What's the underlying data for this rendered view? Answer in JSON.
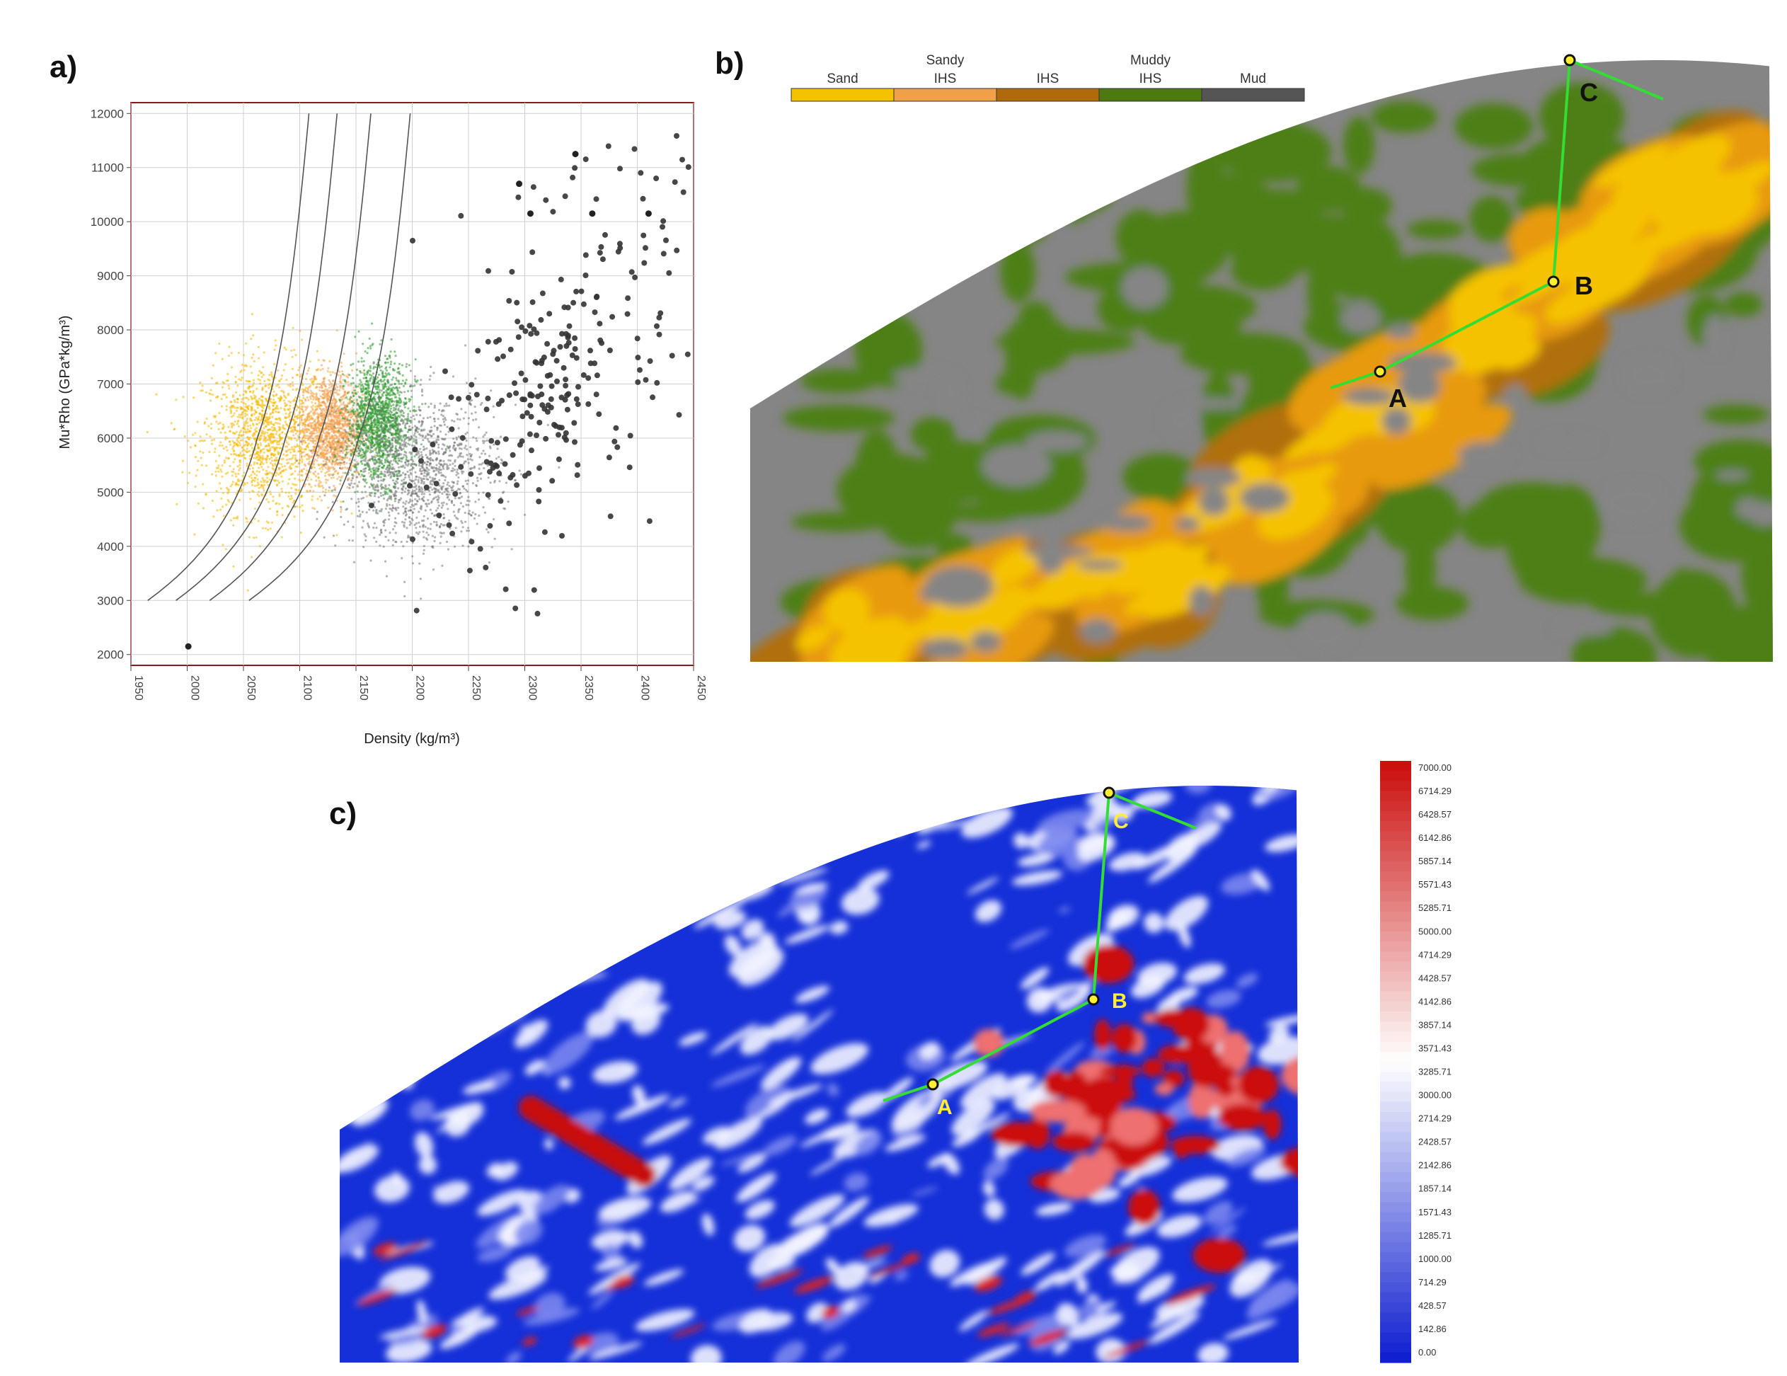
{
  "panels": {
    "a": {
      "label": "a)"
    },
    "b": {
      "label": "b)"
    },
    "c": {
      "label": "c)"
    }
  },
  "chart_data": [
    {
      "panel": "a",
      "type": "scatter",
      "xlabel": "Density (kg/m³)",
      "ylabel": "Mu*Rho (GPa*kg/m³)",
      "xlim": [
        1950,
        2450
      ],
      "ylim": [
        1800,
        12200
      ],
      "x_ticks": [
        1950,
        2000,
        2050,
        2100,
        2150,
        2200,
        2250,
        2300,
        2350,
        2400,
        2450
      ],
      "x_tick_labels": [
        "1950",
        "2000",
        "2050",
        "2100",
        "2150",
        "2200",
        "2250",
        "2300",
        "2350",
        "2400",
        "2450"
      ],
      "y_ticks": [
        2000,
        3000,
        4000,
        5000,
        6000,
        7000,
        8000,
        9000,
        10000,
        11000,
        12000
      ],
      "y_tick_labels": [
        "2000",
        "3000",
        "4000",
        "5000",
        "6000",
        "7000",
        "8000",
        "9000",
        "10000",
        "11000",
        "12000"
      ],
      "grid": true,
      "clusters": [
        {
          "class": "Sand",
          "color": "#f5b800",
          "center": [
            2070,
            6000
          ],
          "spread": [
            28,
            700
          ],
          "density": "cloud"
        },
        {
          "class": "Sandy IHS",
          "color": "#f2a050",
          "center": [
            2128,
            6200
          ],
          "spread": [
            14,
            500
          ],
          "density": "cloud"
        },
        {
          "class": "Muddy IHS",
          "color": "#2e9a2e",
          "center": [
            2170,
            6300
          ],
          "spread": [
            14,
            550
          ],
          "density": "cloud"
        },
        {
          "class": "Mud",
          "color": "#777777",
          "center": [
            2205,
            5400
          ],
          "spread": [
            35,
            700
          ],
          "density": "cloud"
        },
        {
          "class": "Mud",
          "color": "#333333",
          "center": [
            2330,
            7200
          ],
          "spread": [
            55,
            1500
          ],
          "density": "sparse"
        }
      ],
      "notable_points": [
        {
          "x": 2345,
          "y": 11250
        },
        {
          "x": 2295,
          "y": 10700
        },
        {
          "x": 2305,
          "y": 10150
        },
        {
          "x": 2360,
          "y": 10150
        },
        {
          "x": 2410,
          "y": 10150
        },
        {
          "x": 2001,
          "y": 2150
        }
      ]
    },
    {
      "panel": "b",
      "type": "heatmap",
      "legend_position": "top",
      "legend": [
        {
          "label": "Sand",
          "color": "#f5c200"
        },
        {
          "label": "Sandy IHS",
          "color": "#f0a048"
        },
        {
          "label": "IHS",
          "color": "#b06a0c"
        },
        {
          "label": "Muddy IHS",
          "color": "#4c7a10"
        },
        {
          "label": "Mud",
          "color": "#555555"
        }
      ],
      "well_points": [
        {
          "name": "A"
        },
        {
          "name": "B"
        },
        {
          "name": "C"
        }
      ],
      "path_color": "#33dd33"
    },
    {
      "panel": "c",
      "type": "heatmap",
      "colorbar_min": 0,
      "colorbar_max": 7000,
      "colorbar_labels": [
        "7000.00",
        "6714.29",
        "6428.57",
        "6142.86",
        "5857.14",
        "5571.43",
        "5285.71",
        "5000.00",
        "4714.29",
        "4428.57",
        "4142.86",
        "3857.14",
        "3571.43",
        "3285.71",
        "3000.00",
        "2714.29",
        "2428.57",
        "2142.86",
        "1857.14",
        "1571.43",
        "1285.71",
        "1000.00",
        "714.29",
        "428.57",
        "142.86",
        "0.00"
      ],
      "colors": {
        "low": "#1020d0",
        "mid": "#ffffff",
        "high": "#cc1010"
      },
      "well_points": [
        {
          "name": "A"
        },
        {
          "name": "B"
        },
        {
          "name": "C"
        }
      ],
      "path_color": "#33dd33"
    }
  ]
}
